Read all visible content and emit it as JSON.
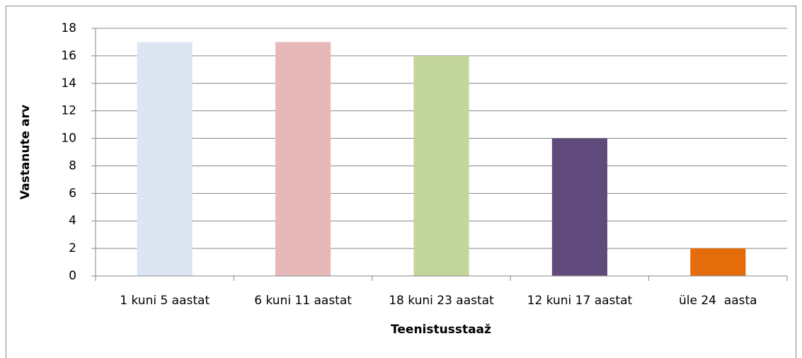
{
  "chart_data": {
    "type": "bar",
    "x_label": "Teenistusstaaž",
    "y_label": "Vastanute arv",
    "categories": [
      "1 kuni 5 aastat",
      "6 kuni 11 aastat",
      "18 kuni 23 aastat",
      "12 kuni 17 aastat",
      "üle 24  aasta"
    ],
    "values": [
      17,
      17,
      16,
      10,
      2
    ],
    "colors": [
      "#dce6f2",
      "#e6b9b8",
      "#c3d69b",
      "#604a7b",
      "#e46c0a"
    ],
    "ylim": [
      0,
      18
    ],
    "yticks": [
      0,
      2,
      4,
      6,
      8,
      10,
      12,
      14,
      16,
      18
    ],
    "grid": true
  }
}
